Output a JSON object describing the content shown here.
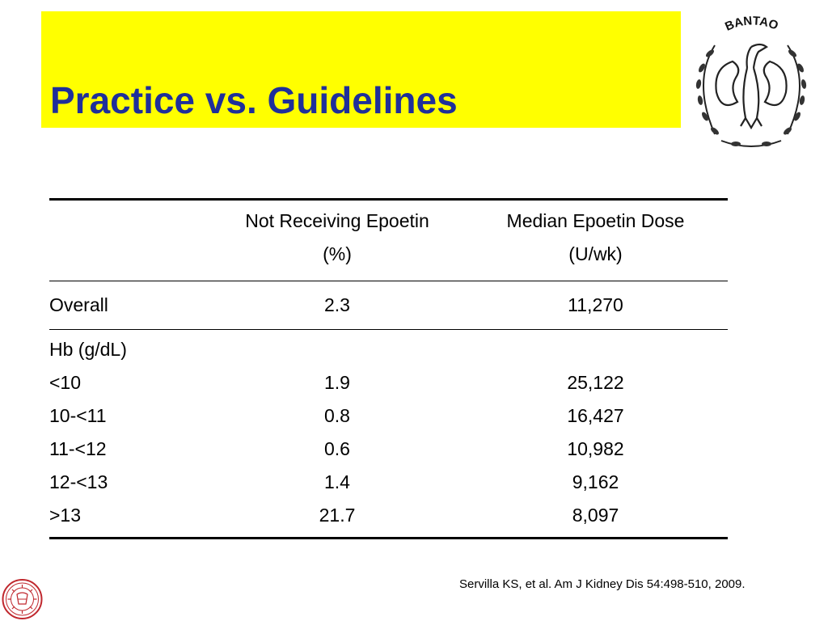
{
  "slide": {
    "title": "Practice vs. Guidelines",
    "title_color": "#1f2f9a",
    "band_color": "#ffff00",
    "logo_text": "BANTAO",
    "logo_icon": "dove-kidney-emblem-icon",
    "seal_icon": "university-seal-icon",
    "seal_color": "#c0282e"
  },
  "table": {
    "headers": [
      {
        "line1": "",
        "line2": ""
      },
      {
        "line1": "Not Receiving Epoetin",
        "line2": "(%)"
      },
      {
        "line1": "Median Epoetin Dose",
        "line2": "(U/wk)"
      }
    ],
    "overall": {
      "label": "Overall",
      "pct": "2.3",
      "dose": "11,270"
    },
    "group_label": "Hb (g/dL)",
    "rows": [
      {
        "label": "<10",
        "pct": "1.9",
        "dose": "25,122"
      },
      {
        "label": "10-<11",
        "pct": "0.8",
        "dose": "16,427"
      },
      {
        "label": "11-<12",
        "pct": "0.6",
        "dose": "10,982"
      },
      {
        "label": "12-<13",
        "pct": "1.4",
        "dose": "9,162"
      },
      {
        "label": ">13",
        "pct": "21.7",
        "dose": "8,097"
      }
    ]
  },
  "citation": "Servilla KS, et al. Am J Kidney Dis 54:498-510, 2009."
}
